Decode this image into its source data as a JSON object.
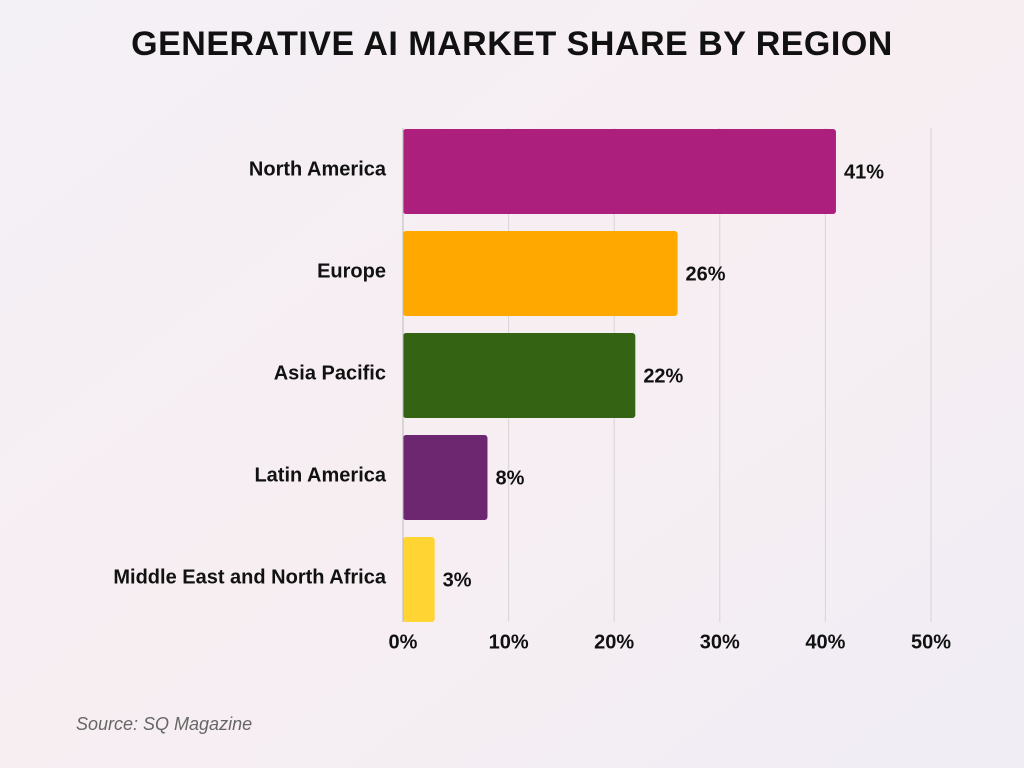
{
  "chart_data": {
    "type": "bar",
    "orientation": "horizontal",
    "title": "GENERATIVE AI MARKET SHARE BY REGION",
    "categories": [
      "North America",
      "Europe",
      "Asia Pacific",
      "Latin America",
      "Middle East and North Africa"
    ],
    "values": [
      41,
      26,
      22,
      8,
      3
    ],
    "value_labels": [
      "41%",
      "26%",
      "22%",
      "8%",
      "3%"
    ],
    "colors": [
      "#ad1f7c",
      "#ffa800",
      "#336313",
      "#6d2670",
      "#ffd433"
    ],
    "xlim": [
      0,
      50
    ],
    "xticks": [
      {
        "value": 0,
        "label": "0%"
      },
      {
        "value": 10,
        "label": "10%"
      },
      {
        "value": 20,
        "label": "20%"
      },
      {
        "value": 30,
        "label": "30%"
      },
      {
        "value": 40,
        "label": "40%"
      },
      {
        "value": 50,
        "label": "50%"
      }
    ],
    "grid": true,
    "source": "Source: SQ Magazine"
  }
}
